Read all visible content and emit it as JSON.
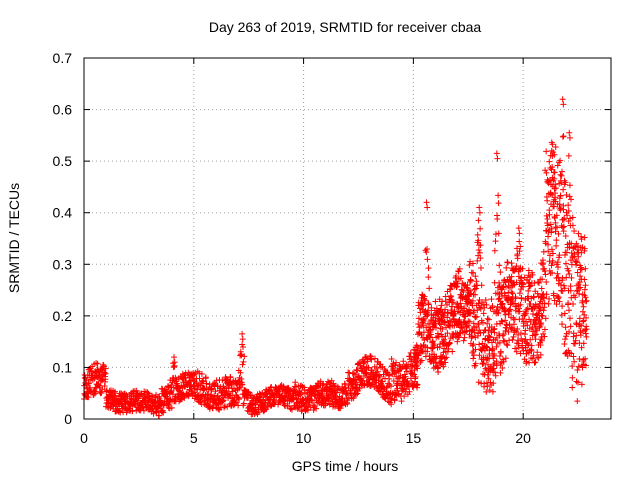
{
  "chart_data": {
    "type": "scatter",
    "title": "Day 263 of 2019, SRMTID for receiver cbaa",
    "xlabel": "GPS time / hours",
    "ylabel": "SRMTID / TECUs",
    "xlim": [
      0,
      24
    ],
    "ylim": [
      0,
      0.7
    ],
    "x_ticks": [
      0,
      5,
      10,
      15,
      20
    ],
    "y_ticks": [
      0,
      0.1,
      0.2,
      0.3,
      0.4,
      0.5,
      0.6,
      0.7
    ],
    "x_tick_labels": [
      "0",
      "5",
      "10",
      "15",
      "20"
    ],
    "y_tick_labels": [
      "0",
      "0.1",
      "0.2",
      "0.3",
      "0.4",
      "0.5",
      "0.6",
      "0.7"
    ],
    "grid": true,
    "marker": "+",
    "marker_color": "#ff0000",
    "series": [
      {
        "name": "SRMTID",
        "sampling_interval_hours": 0.01,
        "x_start": 0,
        "x_end": 22.9,
        "segments": [
          {
            "from": 0.0,
            "to": 1.0,
            "base": 0.06,
            "spread": 0.03
          },
          {
            "from": 1.0,
            "to": 3.5,
            "base": 0.035,
            "spread": 0.02
          },
          {
            "from": 3.5,
            "to": 5.0,
            "base": 0.05,
            "spread": 0.025
          },
          {
            "from": 5.0,
            "to": 7.5,
            "base": 0.055,
            "spread": 0.03
          },
          {
            "from": 7.5,
            "to": 9.5,
            "base": 0.035,
            "spread": 0.02
          },
          {
            "from": 9.5,
            "to": 12.0,
            "base": 0.05,
            "spread": 0.025
          },
          {
            "from": 12.0,
            "to": 14.0,
            "base": 0.07,
            "spread": 0.03
          },
          {
            "from": 14.0,
            "to": 15.2,
            "base": 0.1,
            "spread": 0.04
          },
          {
            "from": 15.2,
            "to": 17.5,
            "base": 0.17,
            "spread": 0.06
          },
          {
            "from": 17.5,
            "to": 20.0,
            "base": 0.2,
            "spread": 0.08
          },
          {
            "from": 20.0,
            "to": 21.0,
            "base": 0.2,
            "spread": 0.08
          },
          {
            "from": 21.0,
            "to": 22.9,
            "base": 0.3,
            "spread": 0.14
          }
        ],
        "peaks": [
          {
            "x": 4.1,
            "y": 0.12
          },
          {
            "x": 7.2,
            "y": 0.165
          },
          {
            "x": 15.6,
            "y": 0.42
          },
          {
            "x": 18.0,
            "y": 0.41
          },
          {
            "x": 18.8,
            "y": 0.515
          },
          {
            "x": 19.8,
            "y": 0.37
          },
          {
            "x": 21.3,
            "y": 0.52
          },
          {
            "x": 21.8,
            "y": 0.62
          },
          {
            "x": 22.1,
            "y": 0.555
          }
        ]
      }
    ]
  }
}
